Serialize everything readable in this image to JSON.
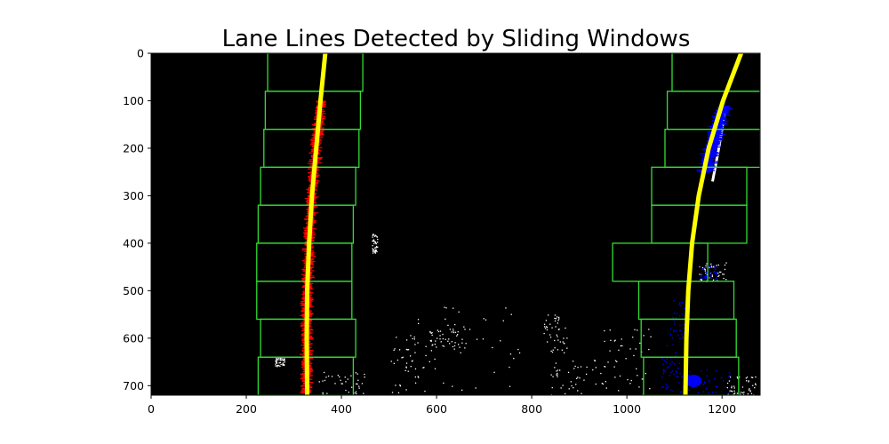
{
  "chart_data": {
    "type": "image-overlay",
    "title": "Lane Lines Detected by Sliding Windows",
    "xlabel": "",
    "ylabel": "",
    "xlim": [
      0,
      1280
    ],
    "ylim": [
      720,
      0
    ],
    "x_ticks": [
      0,
      200,
      400,
      600,
      800,
      1000,
      1200
    ],
    "y_ticks": [
      0,
      100,
      200,
      300,
      400,
      500,
      600,
      700
    ],
    "background_color": "#000000",
    "window_color": "#33dd33",
    "left_pixels_color": "#ff0000",
    "right_pixels_color": "#0000ff",
    "fit_color": "#ffff00",
    "noise_color": "#ffffff",
    "left_fit_points": [
      {
        "x": 366,
        "y": 0
      },
      {
        "x": 356,
        "y": 100
      },
      {
        "x": 347,
        "y": 200
      },
      {
        "x": 338,
        "y": 300
      },
      {
        "x": 332,
        "y": 400
      },
      {
        "x": 328,
        "y": 500
      },
      {
        "x": 327,
        "y": 600
      },
      {
        "x": 328,
        "y": 720
      }
    ],
    "right_fit_points": [
      {
        "x": 1240,
        "y": 0
      },
      {
        "x": 1202,
        "y": 100
      },
      {
        "x": 1172,
        "y": 200
      },
      {
        "x": 1151,
        "y": 300
      },
      {
        "x": 1137,
        "y": 400
      },
      {
        "x": 1129,
        "y": 500
      },
      {
        "x": 1125,
        "y": 600
      },
      {
        "x": 1123,
        "y": 720
      }
    ],
    "left_windows": [
      {
        "x1": 245,
        "y1": 0,
        "x2": 445,
        "y2": 80
      },
      {
        "x1": 240,
        "y1": 80,
        "x2": 440,
        "y2": 160
      },
      {
        "x1": 237,
        "y1": 160,
        "x2": 437,
        "y2": 240
      },
      {
        "x1": 230,
        "y1": 240,
        "x2": 430,
        "y2": 320
      },
      {
        "x1": 225,
        "y1": 320,
        "x2": 425,
        "y2": 400
      },
      {
        "x1": 222,
        "y1": 400,
        "x2": 422,
        "y2": 480
      },
      {
        "x1": 222,
        "y1": 480,
        "x2": 422,
        "y2": 560
      },
      {
        "x1": 230,
        "y1": 560,
        "x2": 430,
        "y2": 640
      },
      {
        "x1": 225,
        "y1": 640,
        "x2": 425,
        "y2": 720
      }
    ],
    "right_windows": [
      {
        "x1": 1095,
        "y1": 0,
        "x2": 1295,
        "y2": 80
      },
      {
        "x1": 1085,
        "y1": 80,
        "x2": 1285,
        "y2": 160
      },
      {
        "x1": 1080,
        "y1": 160,
        "x2": 1280,
        "y2": 240
      },
      {
        "x1": 1052,
        "y1": 240,
        "x2": 1252,
        "y2": 320
      },
      {
        "x1": 1052,
        "y1": 320,
        "x2": 1252,
        "y2": 400
      },
      {
        "x1": 970,
        "y1": 400,
        "x2": 1170,
        "y2": 480
      },
      {
        "x1": 1025,
        "y1": 480,
        "x2": 1225,
        "y2": 560
      },
      {
        "x1": 1030,
        "y1": 560,
        "x2": 1230,
        "y2": 640
      },
      {
        "x1": 1035,
        "y1": 640,
        "x2": 1235,
        "y2": 720
      }
    ]
  }
}
